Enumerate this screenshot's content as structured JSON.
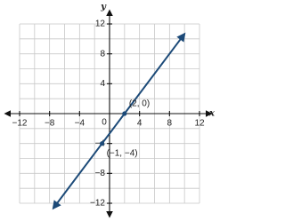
{
  "chart_data": {
    "type": "line",
    "x_label": "x",
    "y_label": "y",
    "origin_label": "0",
    "xlim": [
      -12,
      12
    ],
    "ylim": [
      -12,
      12
    ],
    "xticks": [
      {
        "value": -12,
        "label": "−12"
      },
      {
        "value": -8,
        "label": "−8"
      },
      {
        "value": -4,
        "label": "−4"
      },
      4,
      8,
      12
    ],
    "yticks": [
      {
        "value": -12,
        "label": "−12"
      },
      {
        "value": -8,
        "label": "−8"
      },
      {
        "value": -4,
        "label": "−4"
      },
      4,
      8,
      12
    ],
    "grid_lines": [
      -12,
      -10,
      -8,
      -6,
      -4,
      -2,
      0,
      2,
      4,
      6,
      8,
      10,
      12
    ],
    "grid": true,
    "x": [
      -7.5,
      -1,
      2,
      10
    ],
    "series": [
      {
        "color": "#1c4a78",
        "values": [
          -12.67,
          -4,
          0,
          10.67
        ]
      }
    ],
    "annotations": [
      {
        "x": 2,
        "y": 0,
        "label": "(2, 0)"
      },
      {
        "x": -1,
        "y": -4,
        "label": "(−1, −4)"
      }
    ]
  }
}
